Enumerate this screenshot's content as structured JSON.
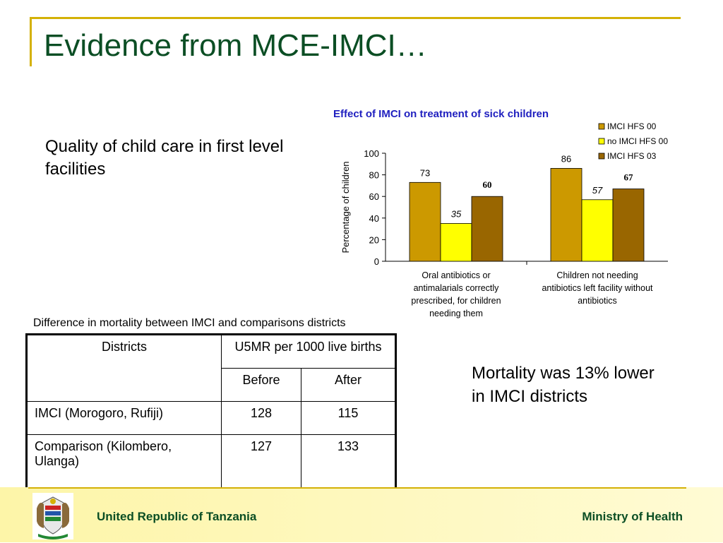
{
  "slide": {
    "title": "Evidence from MCE-IMCI…",
    "left_text": "Quality of child care in first level facilities",
    "right_text": "Mortality was 13% lower in IMCI districts",
    "table_caption": "Difference in mortality between IMCI and comparisons districts"
  },
  "table": {
    "header_districts": "Districts",
    "header_u5mr": "U5MR per 1000 live births",
    "header_before": "Before",
    "header_after": "After",
    "rows": [
      {
        "district": "IMCI (Morogoro, Rufiji)",
        "before": "128",
        "after": "115"
      },
      {
        "district": "Comparison (Kilombero, Ulanga)",
        "before": "127",
        "after": "133"
      }
    ]
  },
  "footer": {
    "left": "United Republic of Tanzania",
    "right": "Ministry of Health"
  },
  "colors": {
    "title_green": "#0b4e24",
    "accent_gold": "#d4b106",
    "chart_title_blue": "#1f1fbf"
  },
  "chart_data": {
    "type": "bar",
    "title": "Effect of IMCI on treatment of sick children",
    "ylabel": "Percentage of children",
    "xlabel": "",
    "ylim": [
      0,
      100
    ],
    "yticks": [
      0,
      20,
      40,
      60,
      80,
      100
    ],
    "grid": false,
    "legend_position": "top-right",
    "categories": [
      "Oral antibiotics or antimalarials correctly prescribed, for children needing them",
      "Children not needing antibiotics left facility without antibiotics"
    ],
    "category_lines": [
      [
        "Oral antibiotics or",
        "antimalarials correctly",
        "prescribed, for children",
        "needing them"
      ],
      [
        "Children not needing",
        "antibiotics left facility without",
        "antibiotics"
      ]
    ],
    "series": [
      {
        "name": "IMCI HFS 00",
        "values": [
          73,
          86
        ],
        "color": "#cc9900",
        "label_style": "plain"
      },
      {
        "name": "no IMCI HFS 00",
        "values": [
          35,
          57
        ],
        "color": "#ffff00",
        "label_style": "italic"
      },
      {
        "name": "IMCI HFS 03",
        "values": [
          60,
          67
        ],
        "color": "#996600",
        "label_style": "serif-bold"
      }
    ]
  }
}
